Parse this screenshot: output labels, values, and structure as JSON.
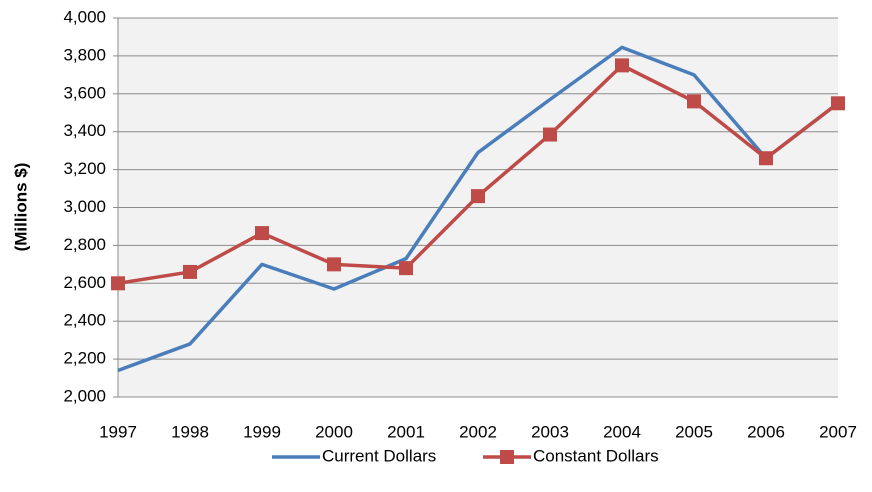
{
  "chart_data": {
    "type": "line",
    "y_label": "(Millions $)",
    "x": [
      "1997",
      "1998",
      "1999",
      "2000",
      "2001",
      "2002",
      "2003",
      "2004",
      "2005",
      "2006",
      "2007"
    ],
    "series": [
      {
        "name": "Current Dollars",
        "color": "#4a7ebb",
        "marker": "none",
        "values": [
          2140,
          2280,
          2700,
          2570,
          2730,
          3290,
          3570,
          3845,
          3700,
          3260,
          3550
        ]
      },
      {
        "name": "Constant Dollars",
        "color": "#be4b48",
        "marker": "square",
        "values": [
          2600,
          2660,
          2865,
          2700,
          2680,
          3060,
          3385,
          3750,
          3560,
          3260,
          3550
        ]
      }
    ],
    "ylim": [
      2000,
      4000
    ],
    "yticks": [
      {
        "value": 2000,
        "label": "2,000"
      },
      {
        "value": 2200,
        "label": "2,200"
      },
      {
        "value": 2400,
        "label": "2,400"
      },
      {
        "value": 2600,
        "label": "2,600"
      },
      {
        "value": 2800,
        "label": "2,800"
      },
      {
        "value": 3000,
        "label": "3,000"
      },
      {
        "value": 3200,
        "label": "3,200"
      },
      {
        "value": 3400,
        "label": "3,400"
      },
      {
        "value": 3600,
        "label": "3,600"
      },
      {
        "value": 3800,
        "label": "3,800"
      },
      {
        "value": 4000,
        "label": "4,000"
      }
    ],
    "grid": true,
    "legend": "bottom"
  }
}
